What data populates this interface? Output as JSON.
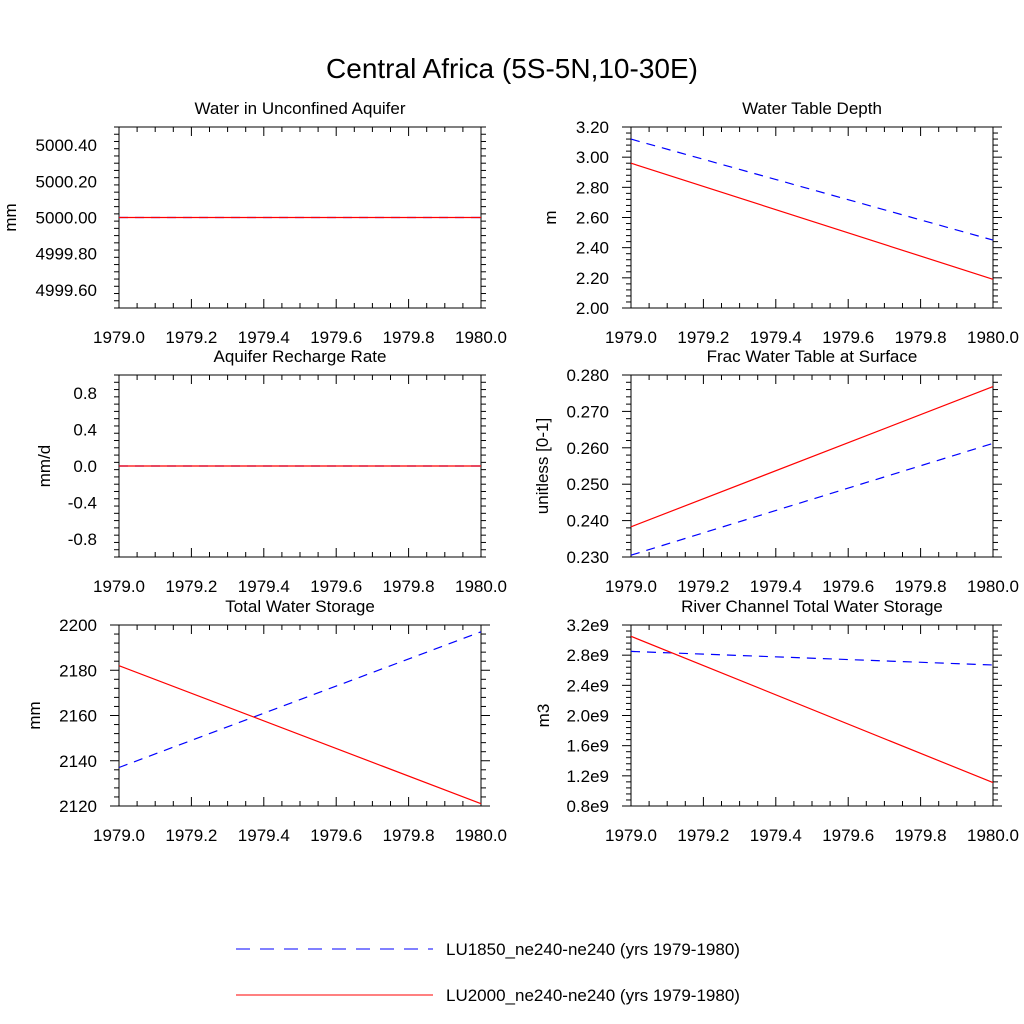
{
  "figure_title": "Central Africa (5S-5N,10-30E)",
  "x_ticks": [
    "1979.0",
    "1979.2",
    "1979.4",
    "1979.6",
    "1979.8",
    "1980.0"
  ],
  "legend": {
    "lu1850": "LU1850_ne240-ne240 (yrs 1979-1980)",
    "lu2000": "LU2000_ne240-ne240 (yrs 1979-1980)"
  },
  "colors": {
    "lu1850": "#0000ff",
    "lu2000": "#ff0000"
  },
  "chart_data": [
    {
      "type": "line",
      "title": "Water in Unconfined Aquifer",
      "ylabel": "mm",
      "xlim": [
        1979.0,
        1980.0
      ],
      "ylim": [
        4999.5,
        5000.5
      ],
      "yticks": [
        4999.6,
        4999.8,
        5000.0,
        5000.2,
        5000.4
      ],
      "ytick_labels": [
        "4999.60",
        "4999.80",
        "5000.00",
        "5000.20",
        "5000.40"
      ],
      "x": [
        1979.0,
        1980.0
      ],
      "series": [
        {
          "name": "LU1850_ne240-ne240 (yrs 1979-1980)",
          "style": "dashed",
          "color": "#0000ff",
          "values": [
            5000.0,
            5000.0
          ]
        },
        {
          "name": "LU2000_ne240-ne240 (yrs 1979-1980)",
          "style": "solid",
          "color": "#ff0000",
          "values": [
            5000.0,
            5000.0
          ]
        }
      ]
    },
    {
      "type": "line",
      "title": "Water Table Depth",
      "ylabel": "m",
      "xlim": [
        1979.0,
        1980.0
      ],
      "ylim": [
        2.0,
        3.2
      ],
      "yticks": [
        2.0,
        2.2,
        2.4,
        2.6,
        2.8,
        3.0,
        3.2
      ],
      "ytick_labels": [
        "2.00",
        "2.20",
        "2.40",
        "2.60",
        "2.80",
        "3.00",
        "3.20"
      ],
      "x": [
        1979.0,
        1980.0
      ],
      "series": [
        {
          "name": "LU1850_ne240-ne240 (yrs 1979-1980)",
          "style": "dashed",
          "color": "#0000ff",
          "values": [
            3.12,
            2.45
          ]
        },
        {
          "name": "LU2000_ne240-ne240 (yrs 1979-1980)",
          "style": "solid",
          "color": "#ff0000",
          "values": [
            2.96,
            2.19
          ]
        }
      ]
    },
    {
      "type": "line",
      "title": "Aquifer Recharge Rate",
      "ylabel": "mm/d",
      "xlim": [
        1979.0,
        1980.0
      ],
      "ylim": [
        -1.0,
        1.0
      ],
      "yticks": [
        -0.8,
        -0.4,
        0.0,
        0.4,
        0.8
      ],
      "ytick_labels": [
        "-0.8",
        "-0.4",
        "0.0",
        "0.4",
        "0.8"
      ],
      "x": [
        1979.0,
        1980.0
      ],
      "series": [
        {
          "name": "LU1850_ne240-ne240 (yrs 1979-1980)",
          "style": "dashed",
          "color": "#0000ff",
          "values": [
            0.0,
            0.0
          ]
        },
        {
          "name": "LU2000_ne240-ne240 (yrs 1979-1980)",
          "style": "solid",
          "color": "#ff0000",
          "values": [
            0.0,
            0.0
          ]
        }
      ]
    },
    {
      "type": "line",
      "title": "Frac Water Table at Surface",
      "ylabel": "unitless [0-1]",
      "xlim": [
        1979.0,
        1980.0
      ],
      "ylim": [
        0.23,
        0.28
      ],
      "yticks": [
        0.23,
        0.24,
        0.25,
        0.26,
        0.27,
        0.28
      ],
      "ytick_labels": [
        "0.230",
        "0.240",
        "0.250",
        "0.260",
        "0.270",
        "0.280"
      ],
      "x": [
        1979.0,
        1980.0
      ],
      "series": [
        {
          "name": "LU1850_ne240-ne240 (yrs 1979-1980)",
          "style": "dashed",
          "color": "#0000ff",
          "values": [
            0.2305,
            0.2612
          ]
        },
        {
          "name": "LU2000_ne240-ne240 (yrs 1979-1980)",
          "style": "solid",
          "color": "#ff0000",
          "values": [
            0.2383,
            0.2768
          ]
        }
      ]
    },
    {
      "type": "line",
      "title": "Total Water Storage",
      "ylabel": "mm",
      "xlim": [
        1979.0,
        1980.0
      ],
      "ylim": [
        2120,
        2200
      ],
      "yticks": [
        2120,
        2140,
        2160,
        2180,
        2200
      ],
      "ytick_labels": [
        "2120",
        "2140",
        "2160",
        "2180",
        "2200"
      ],
      "x": [
        1979.0,
        1980.0
      ],
      "series": [
        {
          "name": "LU1850_ne240-ne240 (yrs 1979-1980)",
          "style": "dashed",
          "color": "#0000ff",
          "values": [
            2137,
            2197
          ]
        },
        {
          "name": "LU2000_ne240-ne240 (yrs 1979-1980)",
          "style": "solid",
          "color": "#ff0000",
          "values": [
            2182,
            2121
          ]
        }
      ]
    },
    {
      "type": "line",
      "title": "River Channel Total Water Storage",
      "ylabel": "m3",
      "xlim": [
        1979.0,
        1980.0
      ],
      "ylim": [
        800000000.0,
        3200000000.0
      ],
      "yticks": [
        800000000.0,
        1200000000.0,
        1600000000.0,
        2000000000.0,
        2400000000.0,
        2800000000.0,
        3200000000.0
      ],
      "ytick_labels": [
        "0.8e9",
        "1.2e9",
        "1.6e9",
        "2.0e9",
        "2.4e9",
        "2.8e9",
        "3.2e9"
      ],
      "x": [
        1979.0,
        1980.0
      ],
      "series": [
        {
          "name": "LU1850_ne240-ne240 (yrs 1979-1980)",
          "style": "dashed",
          "color": "#0000ff",
          "values": [
            2850000000.0,
            2670000000.0
          ]
        },
        {
          "name": "LU2000_ne240-ne240 (yrs 1979-1980)",
          "style": "solid",
          "color": "#ff0000",
          "values": [
            3050000000.0,
            1110000000.0
          ]
        }
      ]
    }
  ]
}
